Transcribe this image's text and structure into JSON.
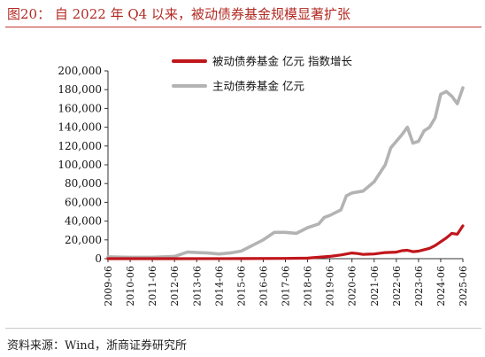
{
  "header": {
    "title": "图20：  自 2022 年 Q4 以来，被动债券基金规模显著扩张"
  },
  "footer": {
    "source": "资料来源：Wind，浙商证券研究所"
  },
  "chart_data": {
    "type": "line",
    "title": "图20：  自 2022 年 Q4 以来，被动债券基金规模显著扩张",
    "xlabel": "",
    "ylabel": "",
    "ylim": [
      0,
      200000
    ],
    "yticks": [
      "0",
      "20,000",
      "40,000",
      "60,000",
      "80,000",
      "100,000",
      "120,000",
      "140,000",
      "160,000",
      "180,000",
      "200,000"
    ],
    "xlim": [
      "2009-06",
      "2025-06"
    ],
    "xticks": [
      "2009-06",
      "2010-06",
      "2011-06",
      "2012-06",
      "2013-06",
      "2014-06",
      "2015-06",
      "2016-06",
      "2017-06",
      "2018-06",
      "2019-06",
      "2020-06",
      "2021-06",
      "2022-06",
      "2023-06",
      "2024-06",
      "2025-06"
    ],
    "grid": false,
    "legend": "top-right",
    "series": [
      {
        "name": "被动债券基金 亿元 指数增长",
        "color": "#c0161b",
        "points": [
          [
            "2009-06",
            0
          ],
          [
            "2012-06",
            0
          ],
          [
            "2015-06",
            100
          ],
          [
            "2017-06",
            300
          ],
          [
            "2018-06",
            600
          ],
          [
            "2018-12",
            1500
          ],
          [
            "2019-06",
            2500
          ],
          [
            "2019-12",
            4000
          ],
          [
            "2020-06",
            6000
          ],
          [
            "2020-09",
            5500
          ],
          [
            "2020-12",
            4500
          ],
          [
            "2021-03",
            4800
          ],
          [
            "2021-06",
            5000
          ],
          [
            "2021-12",
            6500
          ],
          [
            "2022-06",
            7000
          ],
          [
            "2022-09",
            8500
          ],
          [
            "2022-12",
            9000
          ],
          [
            "2023-03",
            7500
          ],
          [
            "2023-06",
            8000
          ],
          [
            "2023-09",
            9500
          ],
          [
            "2023-12",
            11000
          ],
          [
            "2024-03",
            14000
          ],
          [
            "2024-06",
            18000
          ],
          [
            "2024-09",
            22000
          ],
          [
            "2024-12",
            27000
          ],
          [
            "2025-03",
            26000
          ],
          [
            "2025-06",
            35000
          ]
        ]
      },
      {
        "name": "主动债券基金 亿元",
        "color": "#b3b3b3",
        "points": [
          [
            "2009-06",
            2000
          ],
          [
            "2010-06",
            1500
          ],
          [
            "2011-06",
            1500
          ],
          [
            "2012-06",
            2500
          ],
          [
            "2013-01",
            7000
          ],
          [
            "2013-06",
            6500
          ],
          [
            "2013-12",
            6000
          ],
          [
            "2014-06",
            5000
          ],
          [
            "2014-12",
            6000
          ],
          [
            "2015-06",
            8000
          ],
          [
            "2015-12",
            14000
          ],
          [
            "2016-06",
            20000
          ],
          [
            "2016-12",
            28000
          ],
          [
            "2017-06",
            28000
          ],
          [
            "2017-12",
            27000
          ],
          [
            "2018-06",
            33000
          ],
          [
            "2018-12",
            37000
          ],
          [
            "2019-03",
            44000
          ],
          [
            "2019-06",
            46000
          ],
          [
            "2019-12",
            52000
          ],
          [
            "2020-03",
            67000
          ],
          [
            "2020-06",
            70000
          ],
          [
            "2020-12",
            72000
          ],
          [
            "2021-06",
            82000
          ],
          [
            "2021-12",
            100000
          ],
          [
            "2022-03",
            118000
          ],
          [
            "2022-06",
            125000
          ],
          [
            "2022-09",
            132000
          ],
          [
            "2022-12",
            140000
          ],
          [
            "2023-03",
            123000
          ],
          [
            "2023-06",
            125000
          ],
          [
            "2023-09",
            136000
          ],
          [
            "2023-12",
            140000
          ],
          [
            "2024-03",
            150000
          ],
          [
            "2024-06",
            175000
          ],
          [
            "2024-09",
            178000
          ],
          [
            "2024-12",
            173000
          ],
          [
            "2025-03",
            165000
          ],
          [
            "2025-06",
            182000
          ]
        ]
      }
    ]
  }
}
